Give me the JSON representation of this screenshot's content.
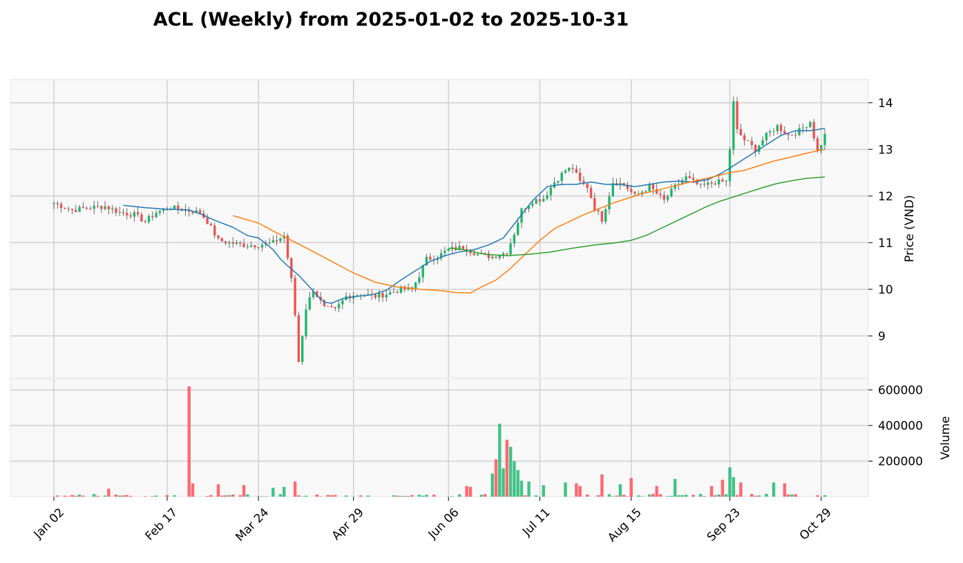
{
  "chart_data": {
    "type": "candlestick",
    "title": "ACL (Weekly) from 2025-01-02 to 2025-10-31",
    "price_panel": {
      "ylabel": "Price (VND)",
      "ylim": [
        8.1,
        14.5
      ],
      "yticks": [
        "9",
        "10",
        "11",
        "12",
        "13",
        "14"
      ],
      "grid": true
    },
    "volume_panel": {
      "ylabel": "Volume",
      "ylim": [
        0,
        660000
      ],
      "yticks": [
        "200000",
        "400000",
        "600000"
      ],
      "grid": true
    },
    "x_axis": {
      "tick_labels": [
        "Jan 02",
        "Feb 17",
        "Mar 24",
        "Apr 29",
        "Jun 06",
        "Jul 11",
        "Aug 15",
        "Sep 23",
        "Oct 29"
      ],
      "tick_positions": [
        0,
        31,
        56,
        82,
        108,
        133,
        158,
        185,
        210
      ],
      "n_sessions": 212
    },
    "colors": {
      "up": "#26a69a",
      "up_body": "#1fb76d",
      "down": "#ef5350",
      "up_volume": "#2ebd7b",
      "down_volume": "#ff5a5f",
      "ma_short": "#1f77b4",
      "ma_mid": "#ff7f0e",
      "ma_long": "#2ca02c",
      "panel_bg": "#f8f8f8",
      "grid": "#d0d0d0"
    },
    "candle_keypoints": [
      [
        0,
        11.85
      ],
      [
        5,
        11.7
      ],
      [
        10,
        11.75
      ],
      [
        14,
        11.78
      ],
      [
        18,
        11.65
      ],
      [
        22,
        11.6
      ],
      [
        25,
        11.45
      ],
      [
        28,
        11.65
      ],
      [
        32,
        11.75
      ],
      [
        36,
        11.7
      ],
      [
        40,
        11.65
      ],
      [
        42,
        11.45
      ],
      [
        45,
        11.05
      ],
      [
        48,
        11.0
      ],
      [
        52,
        10.95
      ],
      [
        56,
        10.95
      ],
      [
        60,
        11.0
      ],
      [
        63,
        11.15
      ],
      [
        65,
        10.2
      ],
      [
        66,
        9.45
      ],
      [
        67,
        8.45
      ],
      [
        69,
        9.6
      ],
      [
        71,
        10.0
      ],
      [
        74,
        9.6
      ],
      [
        77,
        9.55
      ],
      [
        80,
        9.85
      ],
      [
        84,
        9.9
      ],
      [
        88,
        9.85
      ],
      [
        91,
        9.9
      ],
      [
        95,
        10.0
      ],
      [
        98,
        10.0
      ],
      [
        100,
        10.3
      ],
      [
        102,
        10.65
      ],
      [
        105,
        10.7
      ],
      [
        108,
        10.85
      ],
      [
        112,
        10.9
      ],
      [
        116,
        10.75
      ],
      [
        120,
        10.7
      ],
      [
        124,
        10.8
      ],
      [
        126,
        11.2
      ],
      [
        128,
        11.7
      ],
      [
        131,
        11.9
      ],
      [
        134,
        11.95
      ],
      [
        137,
        12.3
      ],
      [
        140,
        12.55
      ],
      [
        142,
        12.6
      ],
      [
        144,
        12.3
      ],
      [
        146,
        12.2
      ],
      [
        148,
        11.75
      ],
      [
        150,
        11.5
      ],
      [
        153,
        12.3
      ],
      [
        156,
        12.25
      ],
      [
        159,
        12.0
      ],
      [
        163,
        12.2
      ],
      [
        167,
        11.9
      ],
      [
        170,
        12.2
      ],
      [
        173,
        12.4
      ],
      [
        177,
        12.2
      ],
      [
        181,
        12.3
      ],
      [
        184,
        12.3
      ],
      [
        185,
        13.0
      ],
      [
        186,
        14.0
      ],
      [
        187,
        13.4
      ],
      [
        189,
        13.2
      ],
      [
        192,
        13.0
      ],
      [
        195,
        13.3
      ],
      [
        198,
        13.5
      ],
      [
        201,
        13.3
      ],
      [
        204,
        13.4
      ],
      [
        207,
        13.6
      ],
      [
        209,
        12.95
      ],
      [
        211,
        13.3
      ]
    ],
    "volume_spikes": [
      [
        15,
        45000
      ],
      [
        37,
        620000
      ],
      [
        38,
        75000
      ],
      [
        45,
        70000
      ],
      [
        52,
        65000
      ],
      [
        60,
        50000
      ],
      [
        63,
        55000
      ],
      [
        66,
        85000
      ],
      [
        113,
        60000
      ],
      [
        114,
        55000
      ],
      [
        120,
        130000
      ],
      [
        121,
        210000
      ],
      [
        122,
        410000
      ],
      [
        123,
        160000
      ],
      [
        124,
        320000
      ],
      [
        125,
        280000
      ],
      [
        126,
        200000
      ],
      [
        127,
        150000
      ],
      [
        128,
        90000
      ],
      [
        130,
        85000
      ],
      [
        134,
        65000
      ],
      [
        140,
        80000
      ],
      [
        143,
        75000
      ],
      [
        144,
        60000
      ],
      [
        150,
        125000
      ],
      [
        155,
        70000
      ],
      [
        158,
        105000
      ],
      [
        165,
        60000
      ],
      [
        170,
        100000
      ],
      [
        180,
        60000
      ],
      [
        183,
        95000
      ],
      [
        185,
        165000
      ],
      [
        186,
        110000
      ],
      [
        188,
        80000
      ],
      [
        197,
        80000
      ],
      [
        200,
        75000
      ]
    ],
    "ma_short": [
      [
        19,
        11.8
      ],
      [
        25,
        11.75
      ],
      [
        30,
        11.72
      ],
      [
        37,
        11.7
      ],
      [
        40,
        11.62
      ],
      [
        44,
        11.48
      ],
      [
        49,
        11.33
      ],
      [
        53,
        11.15
      ],
      [
        56,
        11.1
      ],
      [
        58,
        10.98
      ],
      [
        60,
        10.85
      ],
      [
        62,
        10.65
      ],
      [
        64,
        10.5
      ],
      [
        67,
        10.3
      ],
      [
        70,
        10.05
      ],
      [
        72,
        9.87
      ],
      [
        74,
        9.72
      ],
      [
        76,
        9.7
      ],
      [
        79,
        9.8
      ],
      [
        83,
        9.85
      ],
      [
        87,
        9.88
      ],
      [
        91,
        9.98
      ],
      [
        95,
        10.2
      ],
      [
        99,
        10.4
      ],
      [
        103,
        10.6
      ],
      [
        107,
        10.72
      ],
      [
        111,
        10.8
      ],
      [
        115,
        10.85
      ],
      [
        119,
        10.95
      ],
      [
        123,
        11.1
      ],
      [
        127,
        11.5
      ],
      [
        131,
        11.9
      ],
      [
        135,
        12.2
      ],
      [
        139,
        12.25
      ],
      [
        143,
        12.25
      ],
      [
        147,
        12.3
      ],
      [
        151,
        12.25
      ],
      [
        155,
        12.25
      ],
      [
        159,
        12.2
      ],
      [
        163,
        12.25
      ],
      [
        167,
        12.3
      ],
      [
        171,
        12.32
      ],
      [
        175,
        12.3
      ],
      [
        179,
        12.35
      ],
      [
        183,
        12.5
      ],
      [
        187,
        12.7
      ],
      [
        191,
        12.9
      ],
      [
        195,
        13.1
      ],
      [
        199,
        13.3
      ],
      [
        203,
        13.4
      ],
      [
        207,
        13.4
      ],
      [
        211,
        13.45
      ]
    ],
    "ma_mid": [
      [
        49,
        11.58
      ],
      [
        56,
        11.42
      ],
      [
        60,
        11.25
      ],
      [
        65,
        11.05
      ],
      [
        70,
        10.85
      ],
      [
        76,
        10.6
      ],
      [
        82,
        10.35
      ],
      [
        88,
        10.15
      ],
      [
        94,
        10.05
      ],
      [
        100,
        10.0
      ],
      [
        106,
        9.97
      ],
      [
        110,
        9.93
      ],
      [
        114,
        9.92
      ],
      [
        117,
        10.05
      ],
      [
        121,
        10.2
      ],
      [
        125,
        10.45
      ],
      [
        129,
        10.75
      ],
      [
        133,
        11.05
      ],
      [
        137,
        11.3
      ],
      [
        141,
        11.45
      ],
      [
        145,
        11.6
      ],
      [
        149,
        11.72
      ],
      [
        153,
        11.85
      ],
      [
        157,
        11.95
      ],
      [
        161,
        12.05
      ],
      [
        165,
        12.12
      ],
      [
        169,
        12.2
      ],
      [
        173,
        12.28
      ],
      [
        177,
        12.35
      ],
      [
        181,
        12.42
      ],
      [
        185,
        12.5
      ],
      [
        189,
        12.55
      ],
      [
        193,
        12.65
      ],
      [
        197,
        12.75
      ],
      [
        201,
        12.82
      ],
      [
        205,
        12.9
      ],
      [
        209,
        12.97
      ],
      [
        211,
        13.0
      ]
    ],
    "ma_long": [
      [
        108,
        10.88
      ],
      [
        112,
        10.85
      ],
      [
        118,
        10.75
      ],
      [
        124,
        10.72
      ],
      [
        130,
        10.75
      ],
      [
        136,
        10.8
      ],
      [
        142,
        10.88
      ],
      [
        148,
        10.95
      ],
      [
        154,
        11.0
      ],
      [
        158,
        11.05
      ],
      [
        162,
        11.15
      ],
      [
        166,
        11.3
      ],
      [
        170,
        11.45
      ],
      [
        174,
        11.6
      ],
      [
        178,
        11.75
      ],
      [
        182,
        11.88
      ],
      [
        186,
        11.98
      ],
      [
        190,
        12.08
      ],
      [
        194,
        12.18
      ],
      [
        198,
        12.27
      ],
      [
        202,
        12.33
      ],
      [
        206,
        12.38
      ],
      [
        211,
        12.41
      ]
    ]
  }
}
